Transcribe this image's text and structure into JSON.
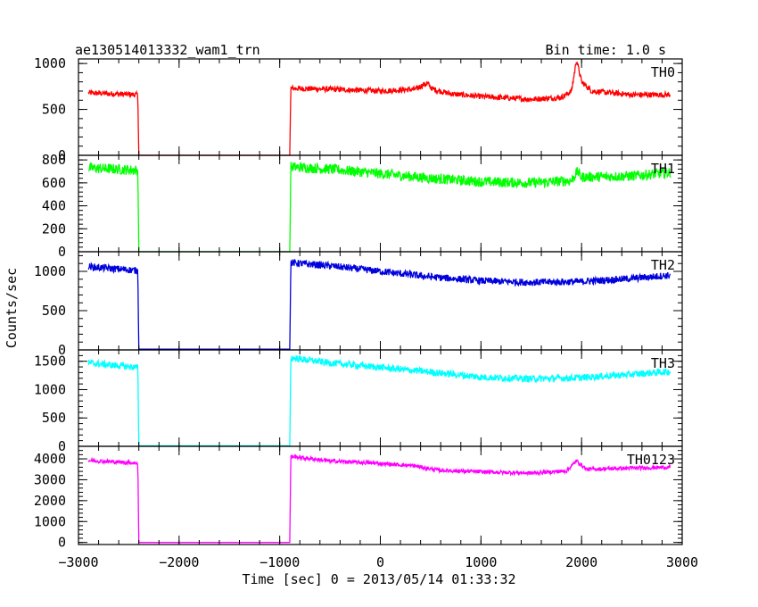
{
  "chart_data": {
    "type": "line",
    "title": "ae130514013332_wam1_trn",
    "subtitle": "Bin time: 1.0 s",
    "xlabel": "Time [sec] 0 = 2013/05/14 01:33:32",
    "ylabel": "Counts/sec",
    "xlim": [
      -3000,
      3000
    ],
    "xticks": [
      -3000,
      -2000,
      -1000,
      0,
      1000,
      2000,
      3000
    ],
    "xtick_labels": [
      "−3000",
      "−2000",
      "−1000",
      "0",
      "1000",
      "2000",
      "3000"
    ],
    "grid": false,
    "panels": [
      {
        "name": "TH0",
        "color": "#ff0000",
        "ylim": [
          0,
          1050
        ],
        "yticks": [
          0,
          500,
          1000
        ],
        "ytick_labels": [
          "0",
          "500",
          "1000"
        ],
        "noise": 30,
        "points": [
          [
            -2900,
            680
          ],
          [
            -2410,
            660
          ],
          [
            -2400,
            0
          ],
          [
            -900,
            0
          ],
          [
            -890,
            730
          ],
          [
            -500,
            720
          ],
          [
            0,
            700
          ],
          [
            350,
            720
          ],
          [
            430,
            770
          ],
          [
            470,
            780
          ],
          [
            520,
            720
          ],
          [
            700,
            670
          ],
          [
            1000,
            640
          ],
          [
            1500,
            610
          ],
          [
            1800,
            630
          ],
          [
            1900,
            700
          ],
          [
            1950,
            1040
          ],
          [
            2000,
            800
          ],
          [
            2100,
            700
          ],
          [
            2500,
            660
          ],
          [
            2880,
            660
          ]
        ]
      },
      {
        "name": "TH1",
        "color": "#00ff00",
        "ylim": [
          0,
          840
        ],
        "yticks": [
          0,
          200,
          400,
          600,
          800
        ],
        "ytick_labels": [
          "0",
          "200",
          "400",
          "600",
          "800"
        ],
        "noise": 45,
        "points": [
          [
            -2900,
            730
          ],
          [
            -2410,
            710
          ],
          [
            -2400,
            0
          ],
          [
            -900,
            0
          ],
          [
            -890,
            740
          ],
          [
            -500,
            720
          ],
          [
            0,
            680
          ],
          [
            500,
            640
          ],
          [
            1000,
            610
          ],
          [
            1500,
            600
          ],
          [
            1900,
            620
          ],
          [
            1960,
            700
          ],
          [
            2000,
            650
          ],
          [
            2500,
            660
          ],
          [
            2880,
            690
          ]
        ]
      },
      {
        "name": "TH2",
        "color": "#0000dd",
        "ylim": [
          0,
          1250
        ],
        "yticks": [
          0,
          500,
          1000
        ],
        "ytick_labels": [
          "0",
          "500",
          "1000"
        ],
        "noise": 45,
        "points": [
          [
            -2900,
            1060
          ],
          [
            -2410,
            1010
          ],
          [
            -2400,
            10
          ],
          [
            -900,
            10
          ],
          [
            -890,
            1110
          ],
          [
            -500,
            1070
          ],
          [
            0,
            1000
          ],
          [
            500,
            930
          ],
          [
            1000,
            880
          ],
          [
            1500,
            860
          ],
          [
            2000,
            870
          ],
          [
            2500,
            910
          ],
          [
            2880,
            950
          ]
        ]
      },
      {
        "name": "TH3",
        "color": "#00ffff",
        "ylim": [
          0,
          1700
        ],
        "yticks": [
          0,
          500,
          1000,
          1500
        ],
        "ytick_labels": [
          "0",
          "500",
          "1000",
          "1500"
        ],
        "noise": 60,
        "points": [
          [
            -2900,
            1470
          ],
          [
            -2410,
            1390
          ],
          [
            -2400,
            10
          ],
          [
            -900,
            10
          ],
          [
            -890,
            1560
          ],
          [
            -500,
            1470
          ],
          [
            0,
            1390
          ],
          [
            500,
            1310
          ],
          [
            1000,
            1220
          ],
          [
            1500,
            1190
          ],
          [
            2000,
            1210
          ],
          [
            2500,
            1270
          ],
          [
            2880,
            1320
          ]
        ]
      },
      {
        "name": "TH0123",
        "color": "#ff00ff",
        "ylim": [
          -100,
          4600
        ],
        "yticks": [
          0,
          1000,
          2000,
          3000,
          4000
        ],
        "ytick_labels": [
          "0",
          "1000",
          "2000",
          "3000",
          "4000"
        ],
        "noise": 90,
        "points": [
          [
            -2900,
            3920
          ],
          [
            -2410,
            3800
          ],
          [
            -2400,
            0
          ],
          [
            -900,
            0
          ],
          [
            -890,
            4120
          ],
          [
            -500,
            3900
          ],
          [
            0,
            3780
          ],
          [
            350,
            3660
          ],
          [
            450,
            3560
          ],
          [
            600,
            3450
          ],
          [
            1000,
            3380
          ],
          [
            1500,
            3320
          ],
          [
            1850,
            3420
          ],
          [
            1950,
            3900
          ],
          [
            2050,
            3500
          ],
          [
            2500,
            3560
          ],
          [
            2880,
            3600
          ]
        ]
      }
    ]
  }
}
